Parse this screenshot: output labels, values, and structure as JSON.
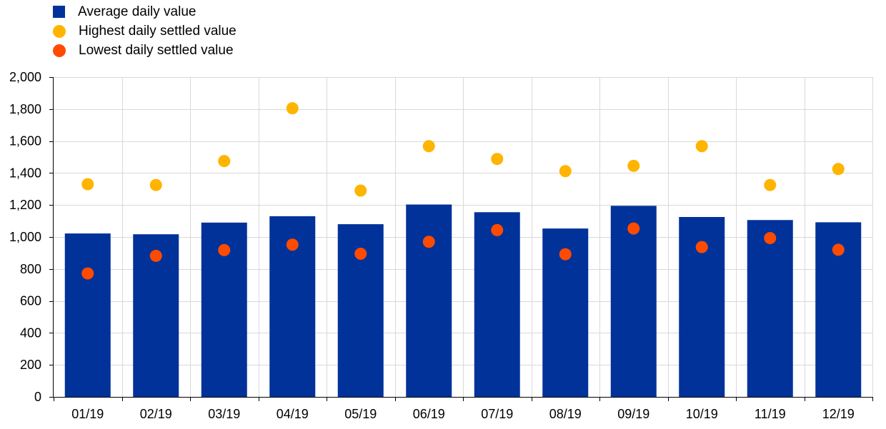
{
  "chart_data": {
    "type": "bar",
    "categories": [
      "01/19",
      "02/19",
      "03/19",
      "04/19",
      "05/19",
      "06/19",
      "07/19",
      "08/19",
      "09/19",
      "10/19",
      "11/19",
      "12/19"
    ],
    "series": [
      {
        "name": "Average daily value",
        "kind": "bar",
        "color": "#003299",
        "values": [
          1022,
          1017,
          1090,
          1130,
          1080,
          1203,
          1155,
          1053,
          1195,
          1125,
          1106,
          1092
        ]
      },
      {
        "name": "Highest daily settled value",
        "kind": "marker",
        "color": "#FFB400",
        "values": [
          1330,
          1325,
          1475,
          1805,
          1290,
          1568,
          1488,
          1412,
          1445,
          1568,
          1325,
          1425
        ]
      },
      {
        "name": "Lowest daily settled value",
        "kind": "marker",
        "color": "#FF4B00",
        "values": [
          772,
          882,
          918,
          952,
          895,
          970,
          1043,
          892,
          1053,
          937,
          993,
          920
        ]
      }
    ],
    "ylim": [
      0,
      2000
    ],
    "yticks": [
      0,
      200,
      400,
      600,
      800,
      1000,
      1200,
      1400,
      1600,
      1800,
      2000
    ],
    "ytick_labels": [
      "0",
      "200",
      "400",
      "600",
      "800",
      "1,000",
      "1,200",
      "1,400",
      "1,600",
      "1,800",
      "2,000"
    ],
    "grid": true,
    "legend": "top-left",
    "title": "",
    "xlabel": "",
    "ylabel": ""
  }
}
